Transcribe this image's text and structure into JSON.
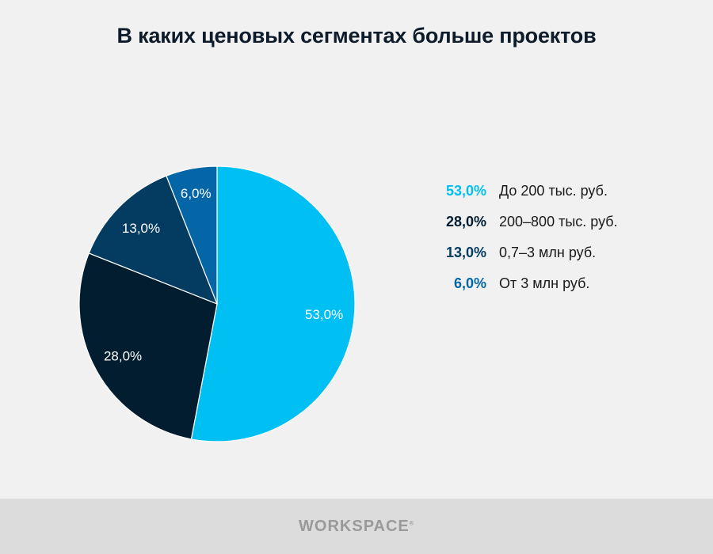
{
  "chart_data": {
    "type": "pie",
    "title": "В каких ценовых сегментах больше проектов",
    "slices": [
      {
        "label": "До 200 тыс. руб.",
        "value": 53.0,
        "value_label": "53,0%",
        "color": "#00bff3"
      },
      {
        "label": "200–800 тыс. руб.",
        "value": 28.0,
        "value_label": "28,0%",
        "color": "#021d30"
      },
      {
        "label": "0,7–3 млн руб.",
        "value": 13.0,
        "value_label": "13,0%",
        "color": "#043c61"
      },
      {
        "label": "От 3 млн руб.",
        "value": 6.0,
        "value_label": "6,0%",
        "color": "#0466a6"
      }
    ],
    "start": "12 o'clock",
    "direction": "clockwise",
    "legend_position": "right"
  },
  "footer": {
    "logo_text": "WORKSPACE",
    "logo_mark": "®"
  },
  "colors": {
    "background": "#f1f1f1",
    "footer_background": "#dcdcdc",
    "title": "#0d1b2a"
  }
}
